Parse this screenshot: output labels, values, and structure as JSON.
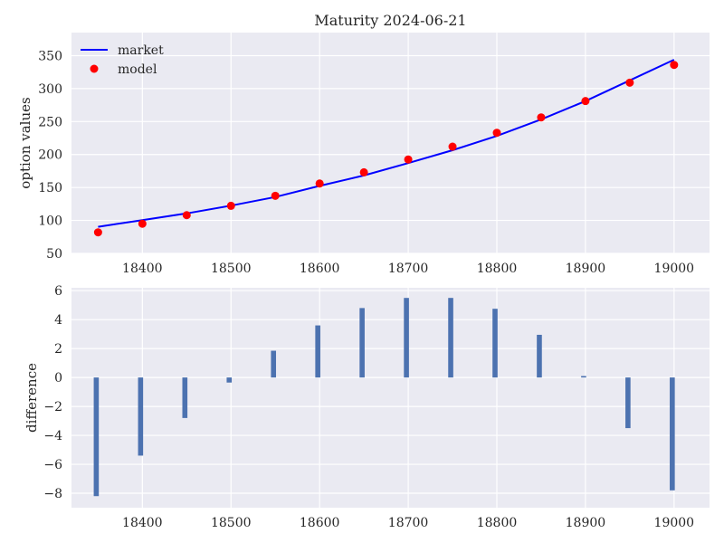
{
  "chart_data": [
    {
      "type": "line",
      "title": "Maturity 2024-06-21",
      "xlabel": "",
      "ylabel": "option values",
      "xlim": [
        18320,
        19040
      ],
      "ylim": [
        50,
        385
      ],
      "xticks": [
        18400,
        18500,
        18600,
        18700,
        18800,
        18900,
        19000
      ],
      "yticks": [
        50,
        100,
        150,
        200,
        250,
        300,
        350
      ],
      "grid": true,
      "legend_position": "top-left",
      "x": [
        18350,
        18400,
        18450,
        18500,
        18550,
        18600,
        18650,
        18700,
        18750,
        18800,
        18850,
        18900,
        18950,
        19000
      ],
      "series": [
        {
          "name": "market",
          "kind": "line",
          "color": "#0000ff",
          "values": [
            90.3,
            100.5,
            110.7,
            122.5,
            135.6,
            152.4,
            168.2,
            187.0,
            206.5,
            228.2,
            253.3,
            281.0,
            312.5,
            343.8
          ]
        },
        {
          "name": "model",
          "kind": "scatter",
          "color": "#ff0000",
          "values": [
            82.0,
            95.0,
            108.0,
            122.2,
            137.4,
            156.0,
            173.0,
            192.5,
            212.0,
            233.0,
            256.3,
            281.1,
            309.0,
            336.0
          ]
        }
      ]
    },
    {
      "type": "bar",
      "title": "",
      "xlabel": "",
      "ylabel": "difference",
      "xlim": [
        18320,
        19040
      ],
      "ylim": [
        -9,
        6.2
      ],
      "xticks": [
        18400,
        18500,
        18600,
        18700,
        18800,
        18900,
        19000
      ],
      "yticks": [
        -8,
        -6,
        -4,
        -2,
        0,
        2,
        4,
        6
      ],
      "grid": true,
      "bar_color": "#4c72b0",
      "x": [
        18350,
        18400,
        18450,
        18500,
        18550,
        18600,
        18650,
        18700,
        18750,
        18800,
        18850,
        18900,
        18950,
        19000
      ],
      "values": [
        -8.2,
        -5.4,
        -2.8,
        -0.35,
        1.85,
        3.6,
        4.8,
        5.5,
        5.5,
        4.75,
        2.95,
        0.1,
        -3.5,
        -7.8
      ]
    }
  ],
  "colors": {
    "axes_background": "#eaeaf2",
    "grid": "#ffffff",
    "text": "#262626"
  }
}
